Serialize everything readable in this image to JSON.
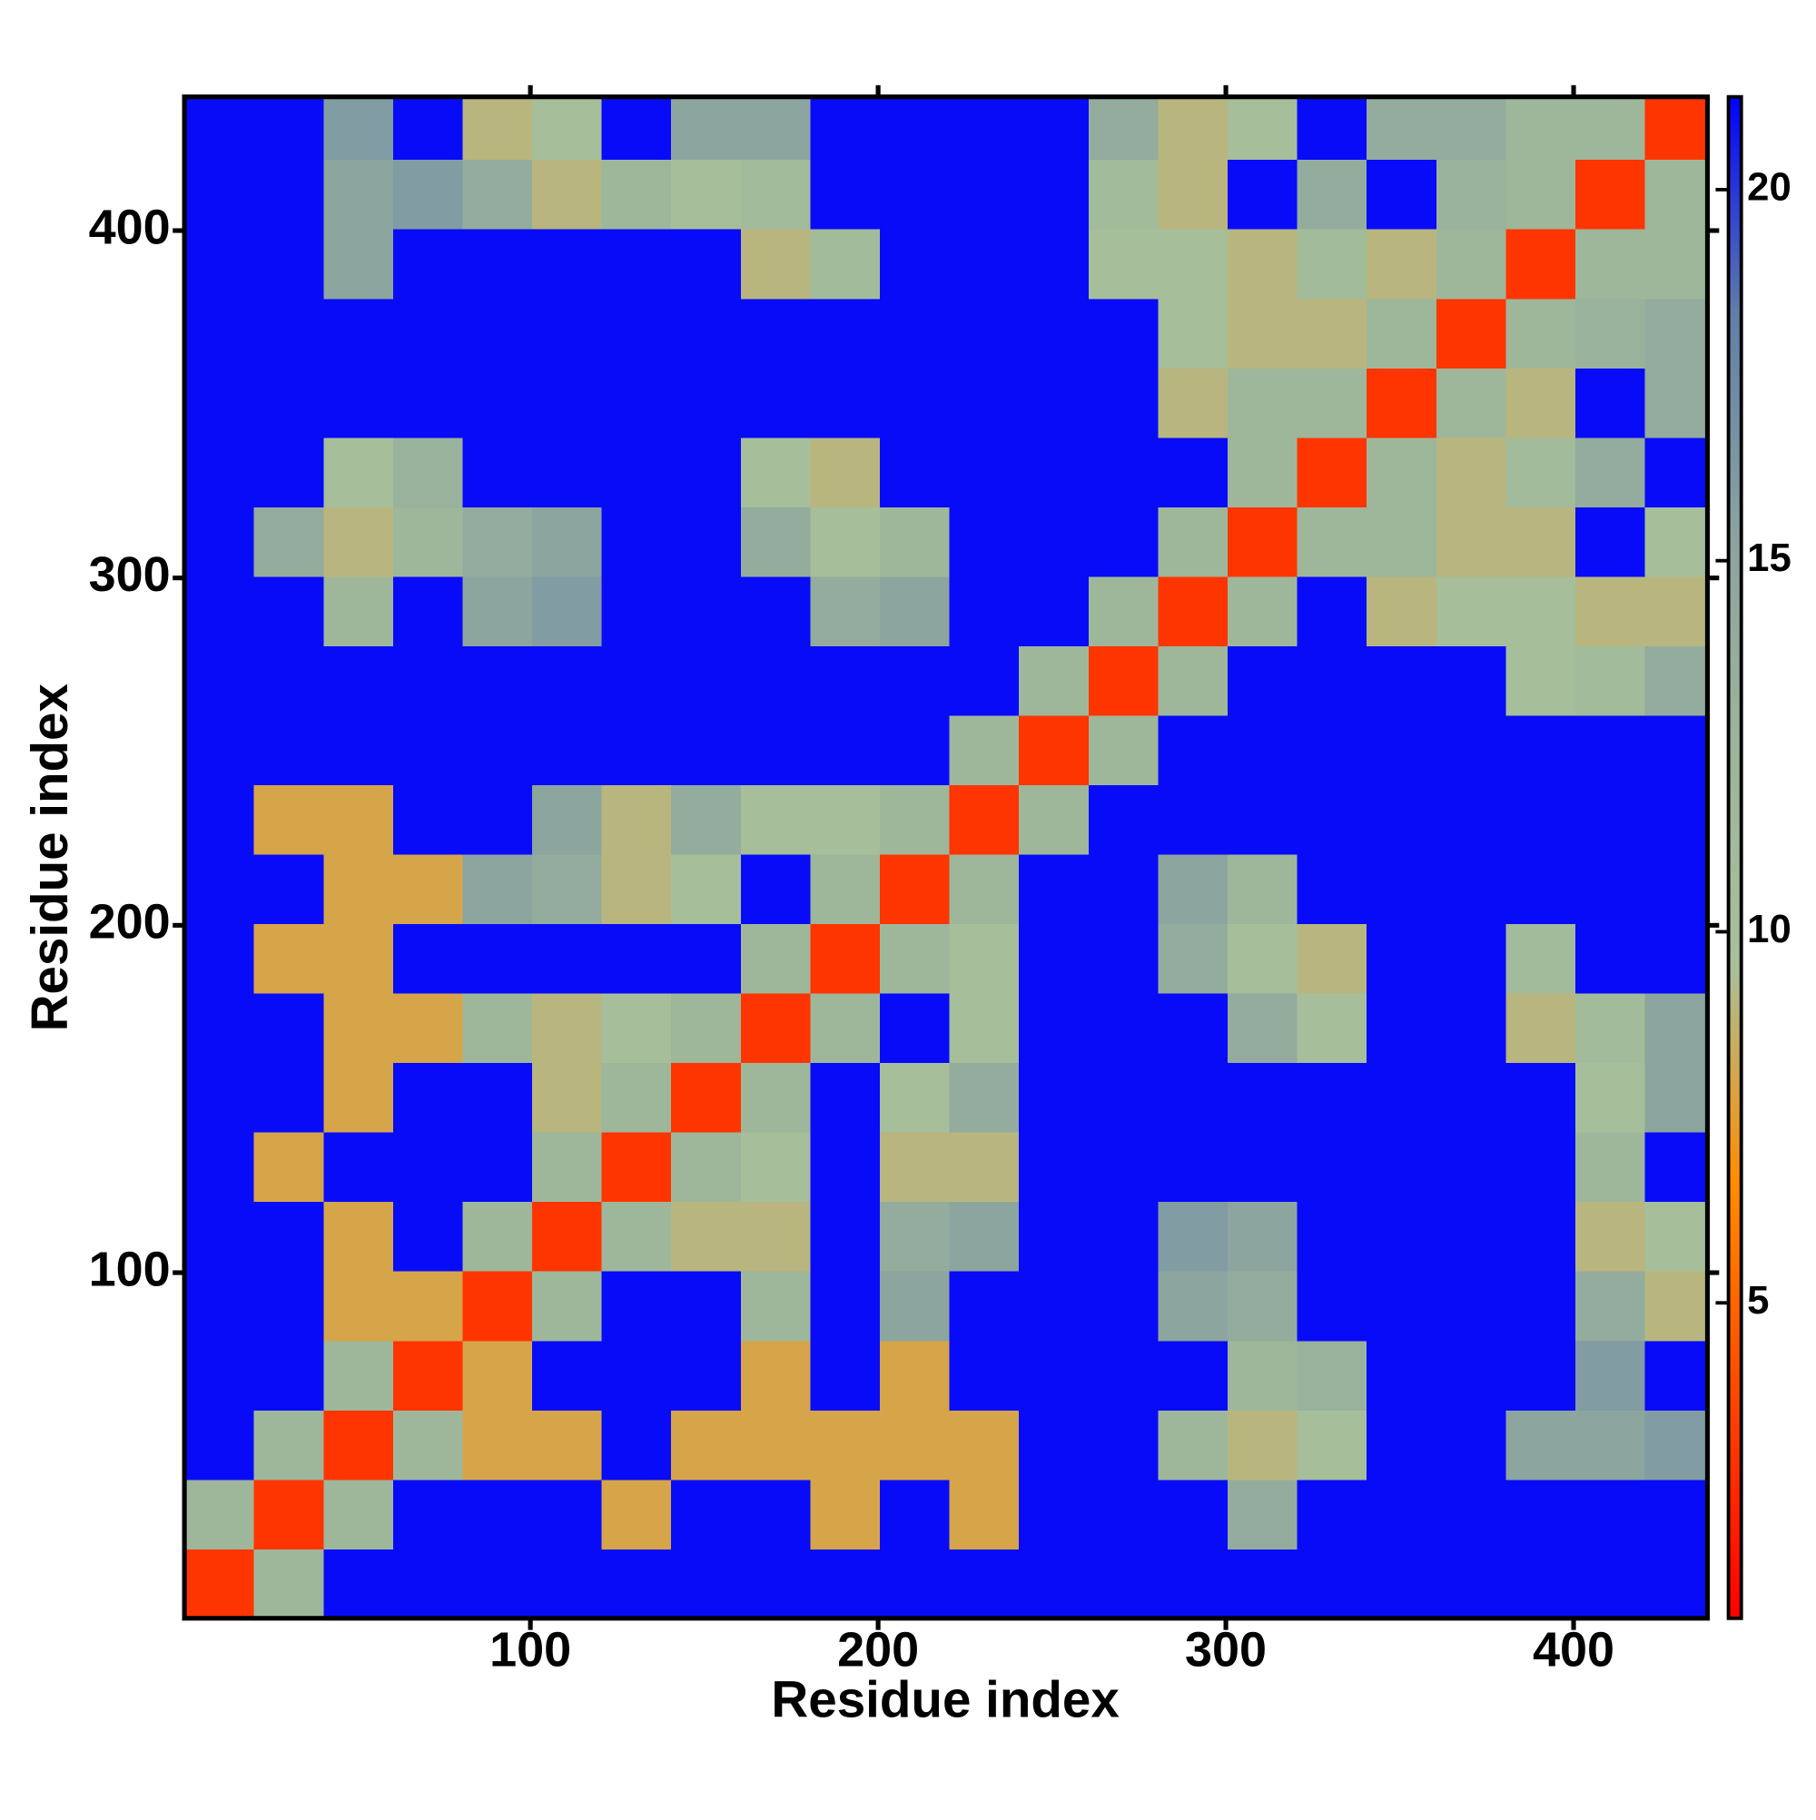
{
  "chart_data": {
    "type": "heatmap",
    "xlabel": "Residue index",
    "ylabel": "Residue index",
    "x_bins": [
      0.5,
      20.5,
      40.5,
      60.5,
      80.5,
      100.5,
      120.5,
      140.5,
      160.5,
      180.5,
      200.5,
      220.5,
      240.5,
      260.5,
      280.5,
      300.5,
      320.5,
      340.5,
      360.5,
      380.5,
      400.5,
      420.5,
      438.5
    ],
    "y_bins": [
      0.5,
      20.5,
      40.5,
      60.5,
      80.5,
      100.5,
      120.5,
      140.5,
      160.5,
      180.5,
      200.5,
      220.5,
      240.5,
      260.5,
      280.5,
      300.5,
      320.5,
      340.5,
      360.5,
      380.5,
      400.5,
      420.5,
      438.5
    ],
    "z": [
      [
        3,
        12,
        21,
        21,
        21,
        21,
        21,
        21,
        21,
        21,
        21,
        21,
        21,
        21,
        21,
        21,
        21,
        21,
        21,
        21,
        21,
        21
      ],
      [
        12,
        3,
        12,
        21,
        21,
        21,
        8,
        21,
        21,
        8,
        21,
        8,
        21,
        21,
        21,
        14,
        21,
        21,
        21,
        21,
        21,
        21
      ],
      [
        21,
        12,
        3,
        12,
        8,
        8,
        21,
        8,
        8,
        8,
        8,
        8,
        21,
        21,
        12,
        9,
        10,
        21,
        21,
        15,
        15,
        16
      ],
      [
        21,
        21,
        12,
        3,
        8,
        21,
        21,
        21,
        8,
        21,
        8,
        21,
        21,
        21,
        21,
        12,
        13,
        21,
        21,
        21,
        16,
        21
      ],
      [
        21,
        21,
        8,
        8,
        3,
        12,
        21,
        21,
        12,
        21,
        15,
        21,
        21,
        21,
        15,
        14,
        21,
        21,
        21,
        21,
        14,
        9
      ],
      [
        21,
        21,
        8,
        21,
        12,
        3,
        12,
        9,
        9,
        21,
        14,
        15,
        21,
        21,
        16,
        15,
        21,
        21,
        21,
        21,
        9,
        10
      ],
      [
        21,
        8,
        21,
        21,
        21,
        12,
        3,
        12,
        10,
        21,
        9,
        9,
        21,
        21,
        21,
        21,
        21,
        21,
        21,
        21,
        12,
        21
      ],
      [
        21,
        21,
        8,
        21,
        21,
        9,
        12,
        3,
        12,
        21,
        10,
        14,
        21,
        21,
        21,
        21,
        21,
        21,
        21,
        21,
        10,
        15
      ],
      [
        21,
        21,
        8,
        8,
        12,
        9,
        10,
        12,
        3,
        12,
        21,
        10,
        21,
        21,
        21,
        14,
        10,
        21,
        21,
        9,
        11,
        15
      ],
      [
        21,
        8,
        8,
        21,
        21,
        21,
        21,
        21,
        12,
        3,
        12,
        10,
        21,
        21,
        14,
        10,
        9,
        21,
        21,
        11,
        21,
        21
      ],
      [
        21,
        21,
        8,
        8,
        15,
        14,
        9,
        10,
        21,
        12,
        3,
        12,
        21,
        21,
        15,
        12,
        21,
        21,
        21,
        21,
        21,
        21
      ],
      [
        21,
        8,
        8,
        21,
        21,
        15,
        9,
        14,
        10,
        10,
        12,
        3,
        12,
        21,
        21,
        21,
        21,
        21,
        21,
        21,
        21,
        21
      ],
      [
        21,
        21,
        21,
        21,
        21,
        21,
        21,
        21,
        21,
        21,
        21,
        12,
        3,
        12,
        21,
        21,
        21,
        21,
        21,
        21,
        21,
        21
      ],
      [
        21,
        21,
        21,
        21,
        21,
        21,
        21,
        21,
        21,
        21,
        21,
        21,
        12,
        3,
        12,
        21,
        21,
        21,
        21,
        10,
        11,
        14
      ],
      [
        21,
        21,
        12,
        21,
        15,
        16,
        21,
        21,
        21,
        14,
        15,
        21,
        21,
        12,
        3,
        12,
        21,
        9,
        10,
        10,
        9,
        9
      ],
      [
        21,
        14,
        9,
        12,
        14,
        15,
        21,
        21,
        14,
        10,
        12,
        21,
        21,
        21,
        12,
        3,
        12,
        12,
        9,
        9,
        21,
        10
      ],
      [
        21,
        21,
        10,
        13,
        21,
        21,
        21,
        21,
        10,
        9,
        21,
        21,
        21,
        21,
        21,
        12,
        3,
        12,
        9,
        11,
        14,
        21
      ],
      [
        21,
        21,
        21,
        21,
        21,
        21,
        21,
        21,
        21,
        21,
        21,
        21,
        21,
        21,
        9,
        12,
        12,
        3,
        12,
        9,
        21,
        14
      ],
      [
        21,
        21,
        21,
        21,
        21,
        21,
        21,
        21,
        21,
        21,
        21,
        21,
        21,
        21,
        10,
        9,
        9,
        12,
        3,
        12,
        13,
        14
      ],
      [
        21,
        21,
        15,
        21,
        21,
        21,
        21,
        21,
        9,
        11,
        21,
        21,
        21,
        10,
        10,
        9,
        11,
        9,
        12,
        3,
        12,
        12
      ],
      [
        21,
        21,
        15,
        16,
        14,
        9,
        12,
        10,
        11,
        21,
        21,
        21,
        21,
        11,
        9,
        21,
        14,
        21,
        13,
        12,
        3,
        12
      ],
      [
        21,
        21,
        16,
        21,
        9,
        10,
        21,
        15,
        15,
        21,
        21,
        21,
        21,
        14,
        9,
        10,
        21,
        14,
        14,
        12,
        12,
        3
      ]
    ],
    "xlim": [
      0.5,
      438.5
    ],
    "ylim": [
      0.5,
      438.5
    ],
    "xticks": [
      100,
      200,
      300,
      400
    ],
    "yticks": [
      100,
      200,
      300,
      400
    ],
    "zlim": [
      0.75,
      21.25
    ],
    "zticks": [
      5,
      10,
      15,
      20
    ],
    "colors": [
      "#ff0000",
      "#ff4500",
      "#ff8c00",
      "#a8c09a",
      "#9cb59a",
      "#8aa3a0",
      "#5f7fa8",
      "#0000ff"
    ]
  }
}
